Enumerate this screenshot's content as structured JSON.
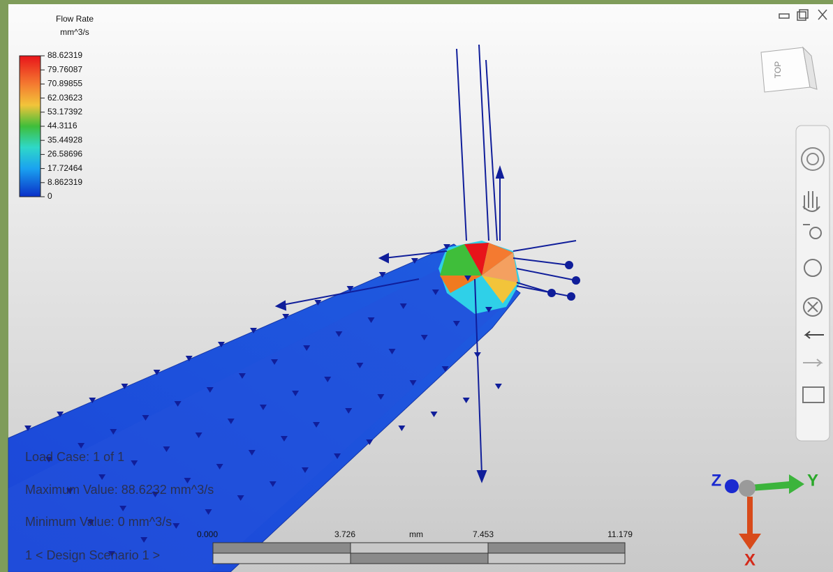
{
  "legend": {
    "title": "Flow Rate",
    "unit": "mm^3/s",
    "labels": [
      "88.62319",
      "79.76087",
      "70.89855",
      "62.03623",
      "53.17392",
      "44.3116",
      "35.44928",
      "26.58696",
      "17.72464",
      "8.862319",
      "0"
    ]
  },
  "info": {
    "load_case": "Load Case:  1 of 1",
    "maximum": "Maximum Value: 88.6232 mm^3/s",
    "minimum": "Minimum Value: 0 mm^3/s",
    "scenario": "1 < Design Scenario 1 >"
  },
  "scale_bar": {
    "labels": [
      "0.000",
      "3.726",
      "7.453",
      "11.179"
    ],
    "unit": "mm"
  },
  "view_cube": {
    "face": "TOP"
  },
  "triad": {
    "x": "X",
    "y": "Y",
    "z": "Z"
  }
}
